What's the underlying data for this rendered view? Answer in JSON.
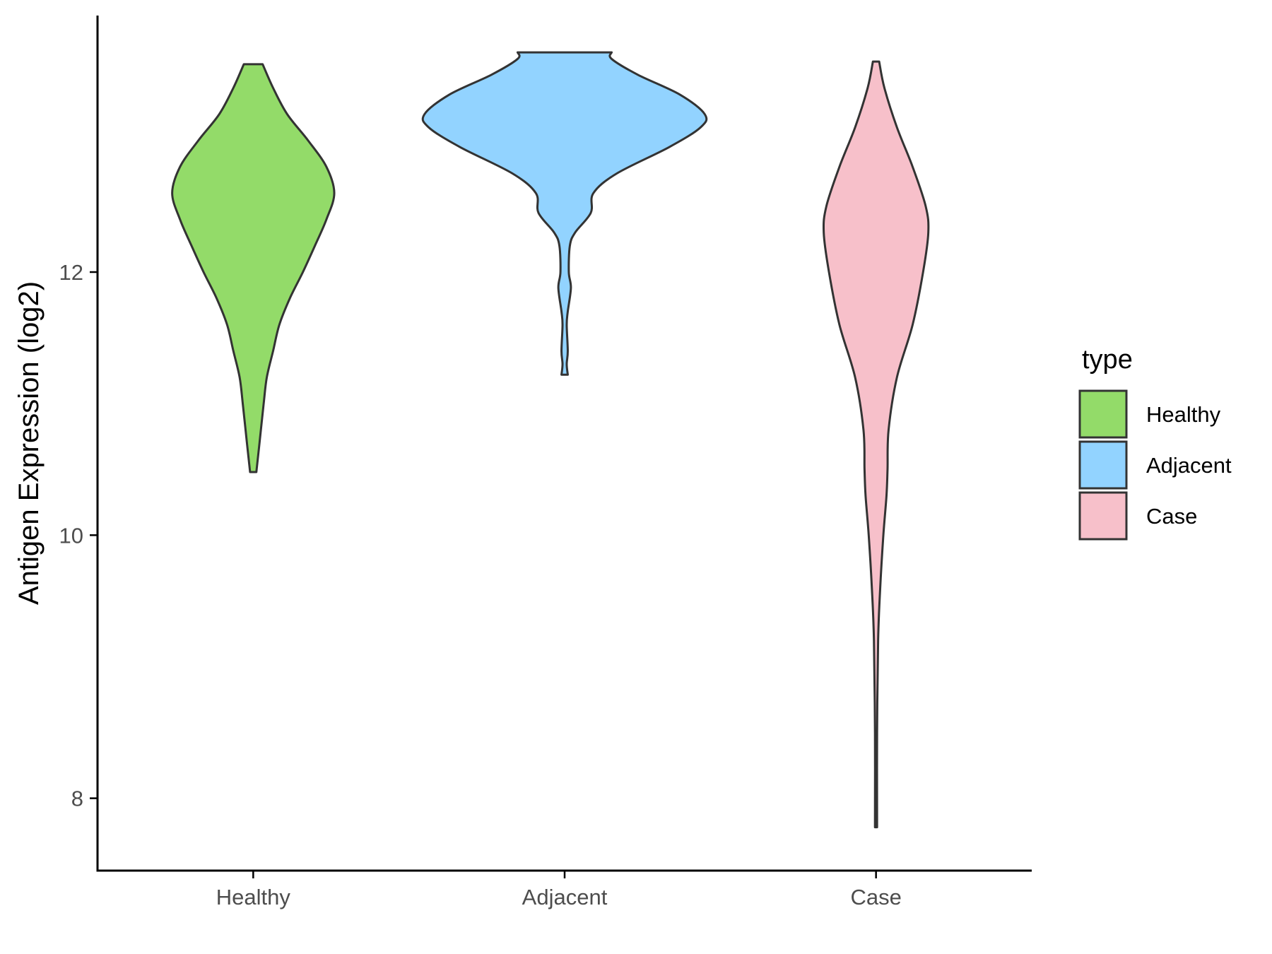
{
  "chart_data": {
    "type": "violin",
    "ylabel": "Antigen Expression (log2)",
    "xlabel": "",
    "ylim": [
      7.45,
      13.95
    ],
    "yticks": [
      8,
      10,
      12
    ],
    "categories": [
      "Healthy",
      "Adjacent",
      "Case"
    ],
    "legend": {
      "title": "type",
      "position": "right",
      "entries": [
        "Healthy",
        "Adjacent",
        "Case"
      ]
    },
    "grid": false,
    "series": [
      {
        "category": "Healthy",
        "color": "#93DB69",
        "min": 10.48,
        "max": 13.58,
        "profile": [
          [
            10.48,
            0.006
          ],
          [
            10.7,
            0.012
          ],
          [
            11.0,
            0.02
          ],
          [
            11.2,
            0.026
          ],
          [
            11.4,
            0.038
          ],
          [
            11.6,
            0.05
          ],
          [
            11.8,
            0.07
          ],
          [
            12.0,
            0.095
          ],
          [
            12.2,
            0.118
          ],
          [
            12.4,
            0.14
          ],
          [
            12.6,
            0.155
          ],
          [
            12.8,
            0.14
          ],
          [
            13.0,
            0.105
          ],
          [
            13.2,
            0.065
          ],
          [
            13.4,
            0.038
          ],
          [
            13.58,
            0.018
          ]
        ]
      },
      {
        "category": "Adjacent",
        "color": "#92D3FF",
        "min": 11.22,
        "max": 13.67,
        "profile": [
          [
            11.22,
            0.006
          ],
          [
            11.3,
            0.004
          ],
          [
            11.4,
            0.006
          ],
          [
            11.6,
            0.004
          ],
          [
            11.7,
            0.006
          ],
          [
            11.88,
            0.012
          ],
          [
            12.0,
            0.008
          ],
          [
            12.2,
            0.01
          ],
          [
            12.3,
            0.02
          ],
          [
            12.45,
            0.05
          ],
          [
            12.6,
            0.055
          ],
          [
            12.75,
            0.1
          ],
          [
            12.95,
            0.2
          ],
          [
            13.1,
            0.26
          ],
          [
            13.2,
            0.268
          ],
          [
            13.35,
            0.22
          ],
          [
            13.5,
            0.14
          ],
          [
            13.62,
            0.09
          ],
          [
            13.67,
            0.09
          ]
        ]
      },
      {
        "category": "Case",
        "color": "#F7C0CA",
        "min": 7.78,
        "max": 13.6,
        "profile": [
          [
            7.78,
            0.002
          ],
          [
            8.5,
            0.002
          ],
          [
            9.2,
            0.004
          ],
          [
            9.6,
            0.008
          ],
          [
            10.0,
            0.014
          ],
          [
            10.3,
            0.02
          ],
          [
            10.5,
            0.022
          ],
          [
            10.8,
            0.024
          ],
          [
            11.2,
            0.04
          ],
          [
            11.6,
            0.07
          ],
          [
            12.0,
            0.09
          ],
          [
            12.3,
            0.1
          ],
          [
            12.5,
            0.095
          ],
          [
            12.8,
            0.07
          ],
          [
            13.1,
            0.04
          ],
          [
            13.4,
            0.016
          ],
          [
            13.6,
            0.006
          ]
        ]
      }
    ]
  }
}
